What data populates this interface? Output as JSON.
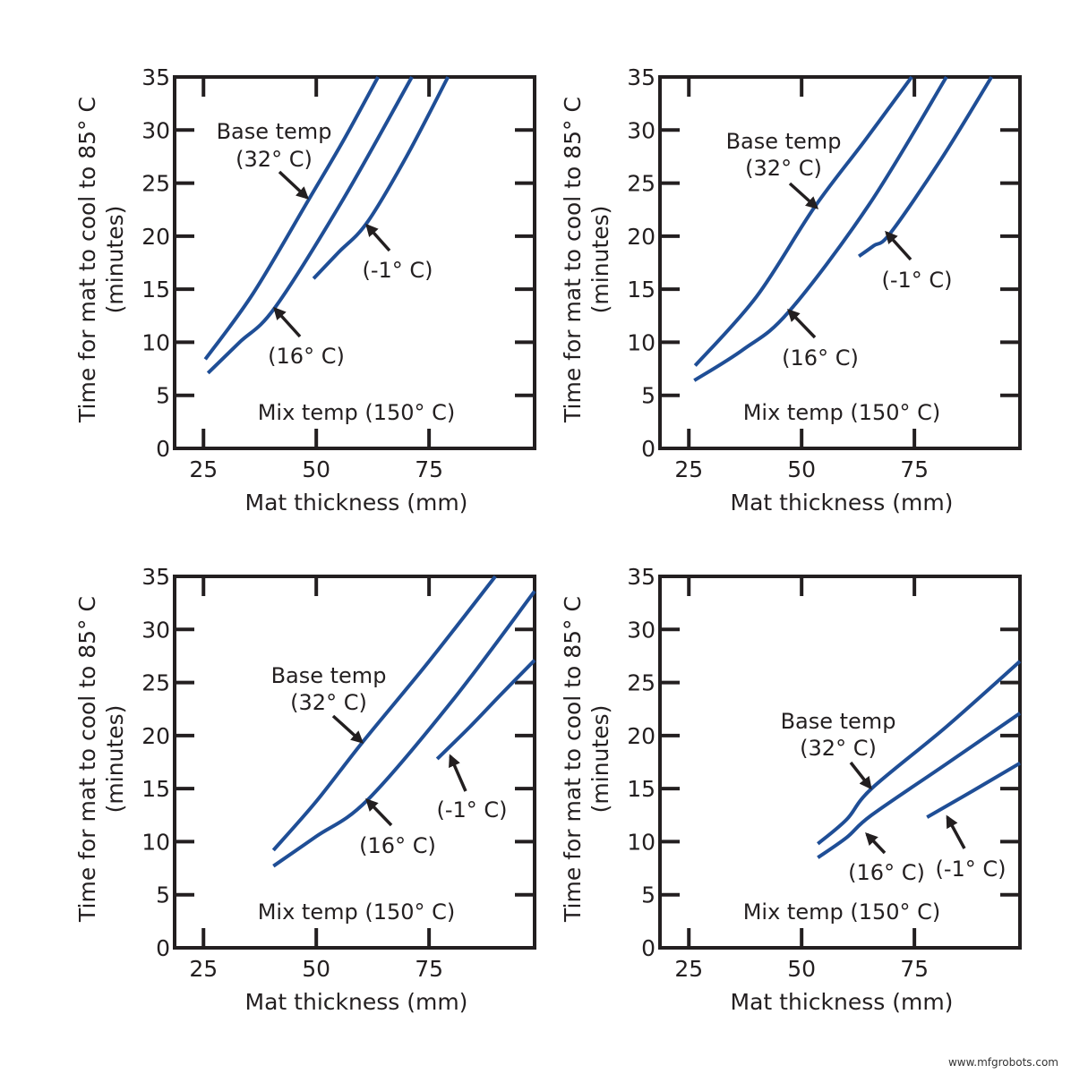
{
  "line_color": "#1f4e96",
  "watermark": "www.mfgrobots.com",
  "chart_data": [
    {
      "type": "line",
      "xlabel": "Mat thickness (mm)",
      "ylabel": [
        "Time for mat to cool to 85° C",
        "(minutes)"
      ],
      "xlim": [
        18.6,
        98.4
      ],
      "ylim": [
        0,
        35
      ],
      "xticks": [
        25,
        50,
        75
      ],
      "yticks": [
        0,
        5,
        10,
        15,
        20,
        25,
        30,
        35
      ],
      "annotation": "Mix temp (150° C)",
      "series": [
        {
          "name": "Base temp (32° C)",
          "label": [
            "Base temp",
            "(32° C)"
          ],
          "x": [
            25.4,
            36,
            48.4,
            56,
            63.7
          ],
          "y": [
            8.4,
            14.6,
            23.5,
            29,
            35
          ]
        },
        {
          "name": "(16° C)",
          "label": [
            "(16° C)"
          ],
          "x": [
            26,
            33,
            40.9,
            56,
            71.2
          ],
          "y": [
            7.1,
            10,
            13.3,
            23.5,
            35
          ]
        },
        {
          "name": "(-1° C)",
          "label": [
            "(-1° C)"
          ],
          "x": [
            49.4,
            55,
            61.3,
            70,
            79.2
          ],
          "y": [
            16.0,
            18.5,
            21.3,
            27.5,
            35
          ]
        }
      ]
    },
    {
      "type": "line",
      "xlabel": "Mat thickness (mm)",
      "ylabel": [
        "Time for mat to cool to 85° C",
        "(minutes)"
      ],
      "xlim": [
        18.6,
        98.4
      ],
      "ylim": [
        0,
        35
      ],
      "xticks": [
        25,
        50,
        75
      ],
      "yticks": [
        0,
        5,
        10,
        15,
        20,
        25,
        30,
        35
      ],
      "annotation": "Mix temp (150° C)",
      "series": [
        {
          "name": "Base temp (32° C)",
          "label": [
            "Base temp",
            "(32° C)"
          ],
          "x": [
            26.4,
            40,
            52.8,
            64,
            74.4
          ],
          "y": [
            7.8,
            14.3,
            22.7,
            29,
            35
          ]
        },
        {
          "name": "(16° C)",
          "label": [
            "(16° C)"
          ],
          "x": [
            26.2,
            37,
            47.2,
            65,
            82.1
          ],
          "y": [
            6.4,
            9.3,
            12.9,
            23,
            35
          ]
        },
        {
          "name": "(-1° C)",
          "label": [
            "(-1° C)"
          ],
          "x": [
            62.7,
            66,
            69.7,
            81,
            92.1
          ],
          "y": [
            18.1,
            19.1,
            20.3,
            27.3,
            35
          ]
        }
      ]
    },
    {
      "type": "line",
      "xlabel": "Mat thickness (mm)",
      "ylabel": [
        "Time for mat to cool to 85° C",
        "(minutes)"
      ],
      "xlim": [
        18.6,
        98.4
      ],
      "ylim": [
        0,
        35
      ],
      "xticks": [
        25,
        50,
        75
      ],
      "yticks": [
        0,
        5,
        10,
        15,
        20,
        25,
        30,
        35
      ],
      "annotation": "Mix temp (150° C)",
      "series": [
        {
          "name": "Base temp (32° C)",
          "label": [
            "Base temp",
            "(32° C)"
          ],
          "x": [
            40.5,
            50,
            60.3,
            75,
            89.7
          ],
          "y": [
            9.2,
            13.8,
            19.4,
            27,
            35
          ]
        },
        {
          "name": "(16° C)",
          "label": [
            "(16° C)"
          ],
          "x": [
            40.5,
            50,
            61.3,
            80,
            98.4
          ],
          "y": [
            7.7,
            10.5,
            13.9,
            23.2,
            33.6
          ]
        },
        {
          "name": "(-1° C)",
          "label": [
            "(-1° C)"
          ],
          "x": [
            76.8,
            84,
            91,
            98.4
          ],
          "y": [
            17.8,
            20.8,
            23.9,
            27.1
          ]
        }
      ]
    },
    {
      "type": "line",
      "xlabel": "Mat thickness (mm)",
      "ylabel": [
        "Time for mat to cool to 85° C",
        "(minutes)"
      ],
      "xlim": [
        18.6,
        98.4
      ],
      "ylim": [
        0,
        35
      ],
      "xticks": [
        25,
        50,
        75
      ],
      "yticks": [
        0,
        5,
        10,
        15,
        20,
        25,
        30,
        35
      ],
      "annotation": "Mix temp (150° C)",
      "series": [
        {
          "name": "Base temp (32° C)",
          "label": [
            "Base temp",
            "(32° C)"
          ],
          "x": [
            53.6,
            60,
            65.5,
            82,
            98.4
          ],
          "y": [
            9.8,
            12.1,
            15.0,
            20.8,
            27.0
          ]
        },
        {
          "name": "(16° C)",
          "label": [
            "(16° C)"
          ],
          "x": [
            53.6,
            60,
            65.5,
            82,
            98.4
          ],
          "y": [
            8.5,
            10.4,
            12.5,
            17.3,
            22.1
          ]
        },
        {
          "name": "(-1° C)",
          "label": [
            "(-1° C)"
          ],
          "x": [
            77.8,
            88,
            98.4
          ],
          "y": [
            12.3,
            14.8,
            17.4
          ]
        }
      ]
    }
  ]
}
